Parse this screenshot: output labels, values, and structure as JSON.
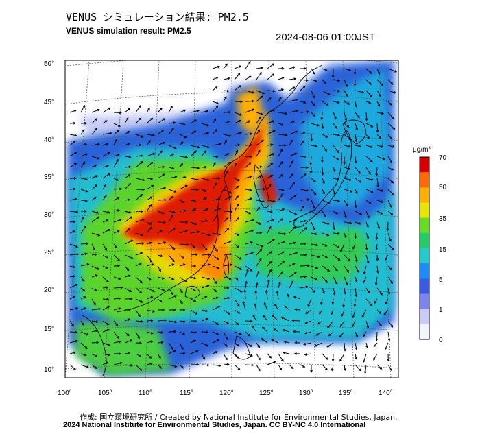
{
  "header": {
    "title_jp": "VENUS シミュレーション結果: PM2.5",
    "title_en": "VENUS simulation result: PM2.5",
    "timestamp": "2024-08-06 01:00JST"
  },
  "map": {
    "lat_labels": [
      "50°",
      "45°",
      "40°",
      "35°",
      "30°",
      "25°",
      "20°",
      "15°",
      "10°"
    ],
    "lon_labels": [
      "100°",
      "105°",
      "110°",
      "115°",
      "120°",
      "125°",
      "130°",
      "135°",
      "140°"
    ]
  },
  "colorbar": {
    "unit": "μg/m³",
    "ticks": [
      "70",
      "50",
      "35",
      "15",
      "5",
      "1",
      "0"
    ],
    "colors": [
      "#d60000",
      "#ff6a00",
      "#ffb000",
      "#e6e600",
      "#66dd22",
      "#22cc66",
      "#22cccc",
      "#1a8cff",
      "#3a5ae6",
      "#7b84f0",
      "#c9ccf7",
      "#f4f4ff"
    ]
  },
  "footer": {
    "credit_jp": "作成: 国立環境研究所 / Created by National Institute for Environmental Studies, Japan.",
    "copyright": "2024 National Institute for Environmental Studies, Japan. CC BY-NC 4.0 International"
  }
}
